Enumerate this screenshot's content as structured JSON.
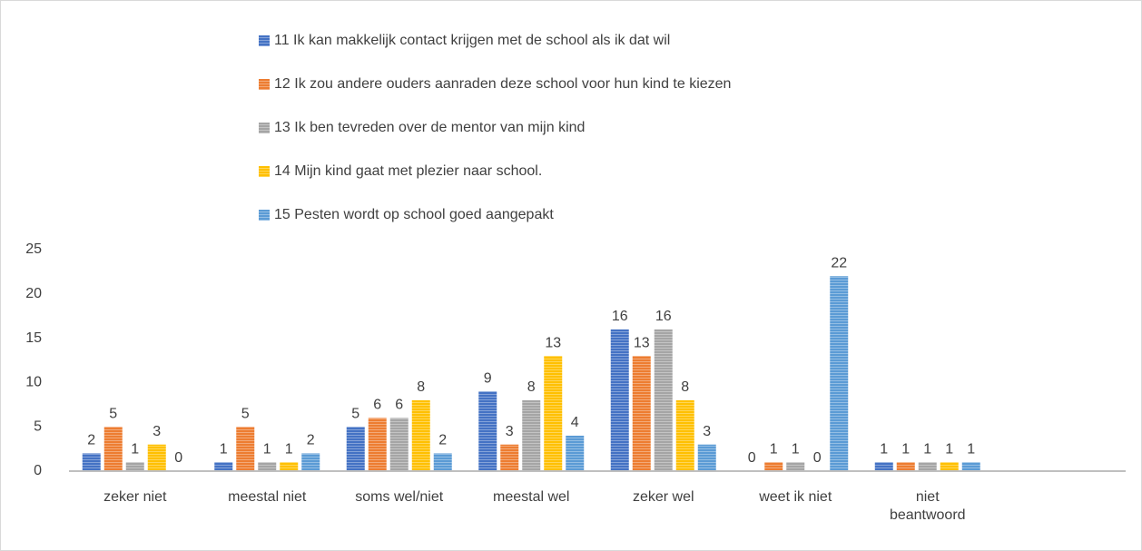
{
  "chart_data": {
    "type": "bar",
    "categories": [
      "zeker niet",
      "meestal niet",
      "soms wel/niet",
      "meestal wel",
      "zeker wel",
      "weet ik niet",
      "niet beantwoord",
      null
    ],
    "series": [
      {
        "name": "11 Ik kan makkelijk contact krijgen met de school als ik dat wil",
        "color": "#4472c4",
        "values": [
          2,
          1,
          5,
          9,
          16,
          0,
          1,
          null
        ]
      },
      {
        "name": "12 Ik zou andere ouders aanraden deze school voor hun kind te kiezen",
        "color": "#ed7d31",
        "values": [
          5,
          5,
          6,
          3,
          13,
          1,
          1,
          null
        ]
      },
      {
        "name": "13 Ik ben tevreden over de mentor van mijn kind",
        "color": "#a5a5a5",
        "values": [
          1,
          1,
          6,
          8,
          16,
          1,
          1,
          null
        ]
      },
      {
        "name": "14 Mijn kind gaat met plezier naar school.",
        "color": "#ffc000",
        "values": [
          3,
          1,
          8,
          13,
          8,
          0,
          1,
          null
        ]
      },
      {
        "name": "15 Pesten wordt op school goed aangepakt",
        "color": "#5b9bd5",
        "values": [
          0,
          2,
          2,
          4,
          3,
          22,
          1,
          null
        ]
      }
    ],
    "ylim": [
      0,
      25
    ],
    "yticks": [
      0,
      5,
      10,
      15,
      20,
      25
    ],
    "grid": false,
    "legend": "top"
  }
}
